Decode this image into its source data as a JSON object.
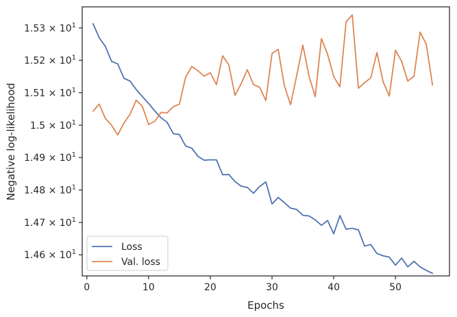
{
  "chart_data": {
    "type": "line",
    "xlabel": "Epochs",
    "ylabel": "Negative log-likelihood",
    "xlim": [
      -0.75,
      58.75
    ],
    "ylim": [
      14.535,
      15.365
    ],
    "x_ticks": [
      0,
      10,
      20,
      30,
      40,
      50
    ],
    "x_tick_labels": [
      "0",
      "10",
      "20",
      "30",
      "40",
      "50"
    ],
    "y_ticks": [
      14.6,
      14.7,
      14.8,
      14.9,
      15.0,
      15.1,
      15.2,
      15.3
    ],
    "y_tick_labels": [
      {
        "mantissa": "1.46",
        "base": "10",
        "exp": "1"
      },
      {
        "mantissa": "1.47",
        "base": "10",
        "exp": "1"
      },
      {
        "mantissa": "1.48",
        "base": "10",
        "exp": "1"
      },
      {
        "mantissa": "1.49",
        "base": "10",
        "exp": "1"
      },
      {
        "mantissa": "1.5",
        "base": "10",
        "exp": "1"
      },
      {
        "mantissa": "1.51",
        "base": "10",
        "exp": "1"
      },
      {
        "mantissa": "1.52",
        "base": "10",
        "exp": "1"
      },
      {
        "mantissa": "1.53",
        "base": "10",
        "exp": "1"
      }
    ],
    "legend_placement": "lower-left",
    "grid": false,
    "x": [
      1,
      2,
      3,
      4,
      5,
      6,
      7,
      8,
      9,
      10,
      11,
      12,
      13,
      14,
      15,
      16,
      17,
      18,
      19,
      20,
      21,
      22,
      23,
      24,
      25,
      26,
      27,
      28,
      29,
      30,
      31,
      32,
      33,
      34,
      35,
      36,
      37,
      38,
      39,
      40,
      41,
      42,
      43,
      44,
      45,
      46,
      47,
      48,
      49,
      50,
      51,
      52,
      53,
      54,
      55,
      56
    ],
    "series": [
      {
        "name": "Loss",
        "color": "#4c72b0",
        "values": [
          15.313,
          15.27,
          15.243,
          15.197,
          15.189,
          15.145,
          15.136,
          15.11,
          15.088,
          15.067,
          15.044,
          15.023,
          15.009,
          14.974,
          14.971,
          14.936,
          14.929,
          14.904,
          14.892,
          14.893,
          14.893,
          14.847,
          14.848,
          14.826,
          14.812,
          14.808,
          14.79,
          14.811,
          14.825,
          14.757,
          14.777,
          14.761,
          14.744,
          14.74,
          14.722,
          14.72,
          14.708,
          14.691,
          14.706,
          14.665,
          14.721,
          14.679,
          14.682,
          14.677,
          14.627,
          14.632,
          14.604,
          14.597,
          14.593,
          14.568,
          14.59,
          14.563,
          14.58,
          14.563,
          14.552,
          14.543
        ]
      },
      {
        "name": "Val. loss",
        "color": "#dd8452",
        "values": [
          15.043,
          15.065,
          15.021,
          15.0,
          14.97,
          15.006,
          15.034,
          15.077,
          15.058,
          15.002,
          15.012,
          15.039,
          15.038,
          15.057,
          15.065,
          15.148,
          15.181,
          15.168,
          15.151,
          15.162,
          15.125,
          15.214,
          15.186,
          15.092,
          15.128,
          15.171,
          15.125,
          15.117,
          15.076,
          15.221,
          15.234,
          15.122,
          15.063,
          15.153,
          15.247,
          15.151,
          15.088,
          15.267,
          15.219,
          15.15,
          15.118,
          15.319,
          15.34,
          15.114,
          15.131,
          15.146,
          15.224,
          15.134,
          15.09,
          15.231,
          15.197,
          15.136,
          15.151,
          15.287,
          15.249,
          15.124
        ]
      }
    ]
  }
}
